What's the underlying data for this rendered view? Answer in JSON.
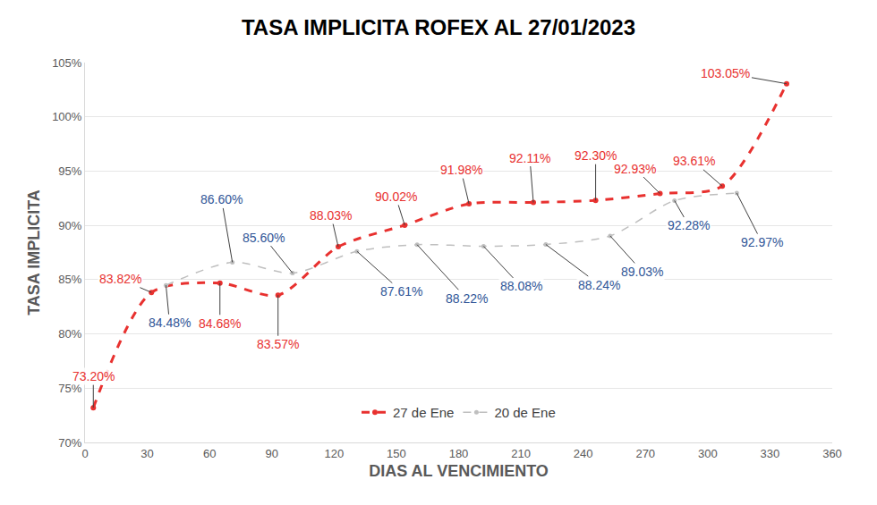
{
  "chart_data": {
    "type": "line",
    "title": "TASA IMPLICITA ROFEX AL 27/01/2023",
    "x_label": "DIAS AL VENCIMIENTO",
    "y_label": "TASA IMPLICITA",
    "series": [
      {
        "name": "27 de Ene",
        "color": "#e8312f",
        "line_style": "dashed",
        "marker": "circle",
        "x": [
          4,
          32,
          65,
          93,
          122,
          154,
          185,
          216,
          246,
          277,
          307,
          338
        ],
        "values": [
          73.2,
          83.82,
          84.68,
          83.57,
          88.03,
          90.02,
          91.98,
          92.11,
          92.3,
          92.93,
          93.61,
          103.05
        ],
        "value_labels": [
          "73.20%",
          "83.82%",
          "84.68%",
          "83.57%",
          "88.03%",
          "90.02%",
          "91.98%",
          "92.11%",
          "92.30%",
          "92.93%",
          "93.61%",
          "103.05%"
        ]
      },
      {
        "name": "20 de Ene",
        "color": "#bfbfbf",
        "line_style": "dashed",
        "marker": "circle",
        "x": [
          39,
          71,
          100,
          131,
          160,
          192,
          222,
          253,
          284,
          314
        ],
        "values": [
          84.48,
          86.6,
          85.6,
          87.61,
          88.22,
          88.08,
          88.24,
          89.03,
          92.28,
          92.97
        ],
        "value_labels": [
          "84.48%",
          "86.60%",
          "85.60%",
          "87.61%",
          "88.22%",
          "88.08%",
          "88.24%",
          "89.03%",
          "92.28%",
          "92.97%"
        ]
      }
    ],
    "xlim": [
      0,
      360
    ],
    "xticks": [
      0,
      30,
      60,
      90,
      120,
      150,
      180,
      210,
      240,
      270,
      300,
      330,
      360
    ],
    "ylim": [
      70,
      105
    ],
    "yticks": [
      {
        "value": 70,
        "label": "70%"
      },
      {
        "value": 75,
        "label": "75%"
      },
      {
        "value": 80,
        "label": "80%"
      },
      {
        "value": 85,
        "label": "85%"
      },
      {
        "value": 90,
        "label": "90%"
      },
      {
        "value": 95,
        "label": "95%"
      },
      {
        "value": 100,
        "label": "100%"
      },
      {
        "value": 105,
        "label": "105%"
      }
    ],
    "grid": true,
    "legend": "bottom",
    "data_labels": true
  }
}
